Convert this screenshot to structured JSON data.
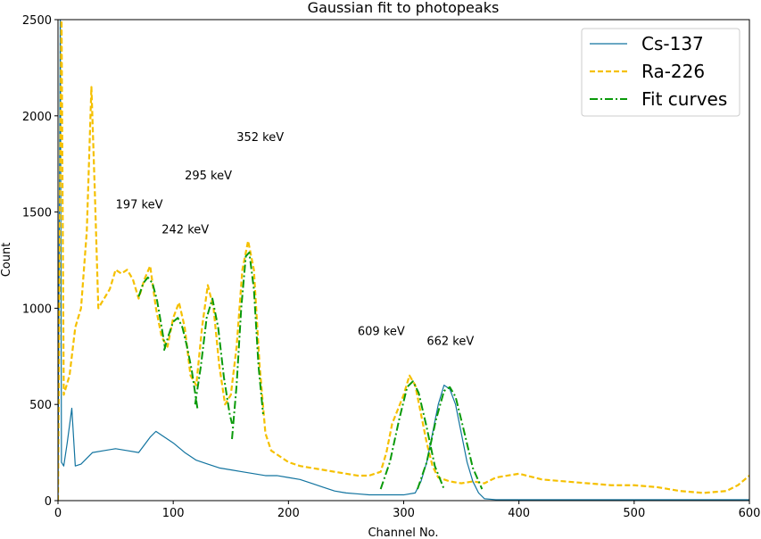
{
  "chart_data": {
    "type": "line",
    "title": "Gaussian fit to photopeaks",
    "x_label": "Channel No.",
    "y_label": "Count",
    "xlim": [
      0,
      600
    ],
    "ylim": [
      0,
      2500
    ],
    "xticks": [
      0,
      100,
      200,
      300,
      400,
      500,
      600
    ],
    "yticks": [
      0,
      500,
      1000,
      1500,
      2000,
      2500
    ],
    "legend": "upper right",
    "series": [
      {
        "name": "Cs-137",
        "color": "#11739f",
        "style": "solid",
        "x": [
          0,
          2,
          3,
          5,
          8,
          12,
          15,
          20,
          25,
          30,
          40,
          50,
          60,
          70,
          80,
          85,
          90,
          100,
          110,
          120,
          130,
          140,
          150,
          160,
          170,
          180,
          190,
          200,
          210,
          220,
          230,
          240,
          250,
          260,
          270,
          280,
          290,
          300,
          310,
          315,
          320,
          325,
          330,
          335,
          340,
          345,
          350,
          355,
          360,
          365,
          370,
          380,
          400,
          450,
          500,
          550,
          600
        ],
        "values": [
          0,
          2600,
          200,
          180,
          300,
          480,
          180,
          190,
          220,
          250,
          260,
          270,
          260,
          250,
          330,
          360,
          340,
          300,
          250,
          210,
          190,
          170,
          160,
          150,
          140,
          130,
          130,
          120,
          110,
          90,
          70,
          50,
          40,
          35,
          30,
          30,
          30,
          30,
          40,
          100,
          200,
          350,
          500,
          600,
          580,
          500,
          350,
          200,
          100,
          40,
          10,
          5,
          5,
          5,
          5,
          5,
          5
        ]
      },
      {
        "name": "Ra-226",
        "color": "#f5c000",
        "style": "dashed",
        "x": [
          0,
          3,
          5,
          10,
          15,
          20,
          25,
          29,
          32,
          35,
          40,
          45,
          50,
          55,
          60,
          65,
          70,
          75,
          80,
          85,
          90,
          95,
          100,
          105,
          110,
          115,
          120,
          125,
          130,
          135,
          140,
          145,
          150,
          155,
          160,
          165,
          170,
          175,
          180,
          185,
          190,
          195,
          200,
          210,
          220,
          230,
          240,
          250,
          260,
          270,
          280,
          285,
          290,
          300,
          305,
          310,
          315,
          320,
          325,
          330,
          340,
          350,
          360,
          370,
          380,
          390,
          400,
          420,
          440,
          460,
          480,
          500,
          520,
          540,
          560,
          580,
          590,
          600
        ],
        "values": [
          0,
          2600,
          550,
          650,
          900,
          1000,
          1400,
          2150,
          1600,
          1000,
          1050,
          1100,
          1200,
          1180,
          1200,
          1150,
          1050,
          1150,
          1220,
          1000,
          850,
          800,
          950,
          1030,
          900,
          650,
          600,
          900,
          1120,
          1000,
          700,
          500,
          550,
          800,
          1200,
          1350,
          1200,
          700,
          350,
          260,
          240,
          220,
          200,
          180,
          170,
          160,
          150,
          140,
          130,
          130,
          150,
          250,
          400,
          550,
          650,
          600,
          450,
          300,
          180,
          120,
          100,
          90,
          100,
          90,
          120,
          130,
          140,
          110,
          100,
          90,
          80,
          80,
          70,
          50,
          40,
          50,
          80,
          130
        ]
      },
      {
        "name": "Fit curves",
        "color": "#0a9a0a",
        "style": "dashdot",
        "x": [
          70,
          74,
          78,
          82,
          86,
          90,
          93,
          null,
          92,
          96,
          100,
          104,
          108,
          112,
          116,
          121,
          null,
          119,
          124,
          129,
          134,
          139,
          144,
          149,
          151,
          null,
          151,
          155,
          159,
          163,
          166,
          170,
          174,
          178,
          null,
          280,
          288,
          296,
          303,
          308,
          313,
          320,
          327,
          335,
          null,
          312,
          320,
          328,
          335,
          340,
          345,
          352,
          360,
          368
        ],
        "values": [
          1060,
          1130,
          1160,
          1130,
          1040,
          900,
          790,
          null,
          780,
          860,
          930,
          950,
          900,
          800,
          680,
          480,
          null,
          500,
          700,
          950,
          1050,
          900,
          640,
          450,
          400,
          null,
          320,
          600,
          1000,
          1270,
          1290,
          1100,
          700,
          450,
          null,
          60,
          200,
          420,
          590,
          620,
          560,
          380,
          180,
          60,
          null,
          60,
          200,
          420,
          570,
          590,
          540,
          370,
          170,
          60
        ]
      }
    ],
    "annotations": [
      {
        "text": "197 keV",
        "x": 50,
        "y": 1520
      },
      {
        "text": "242 keV",
        "x": 90,
        "y": 1390
      },
      {
        "text": "295 keV",
        "x": 110,
        "y": 1670
      },
      {
        "text": "352 keV",
        "x": 155,
        "y": 1870
      },
      {
        "text": "609 keV",
        "x": 260,
        "y": 860
      },
      {
        "text": "662 keV",
        "x": 320,
        "y": 810
      }
    ]
  }
}
